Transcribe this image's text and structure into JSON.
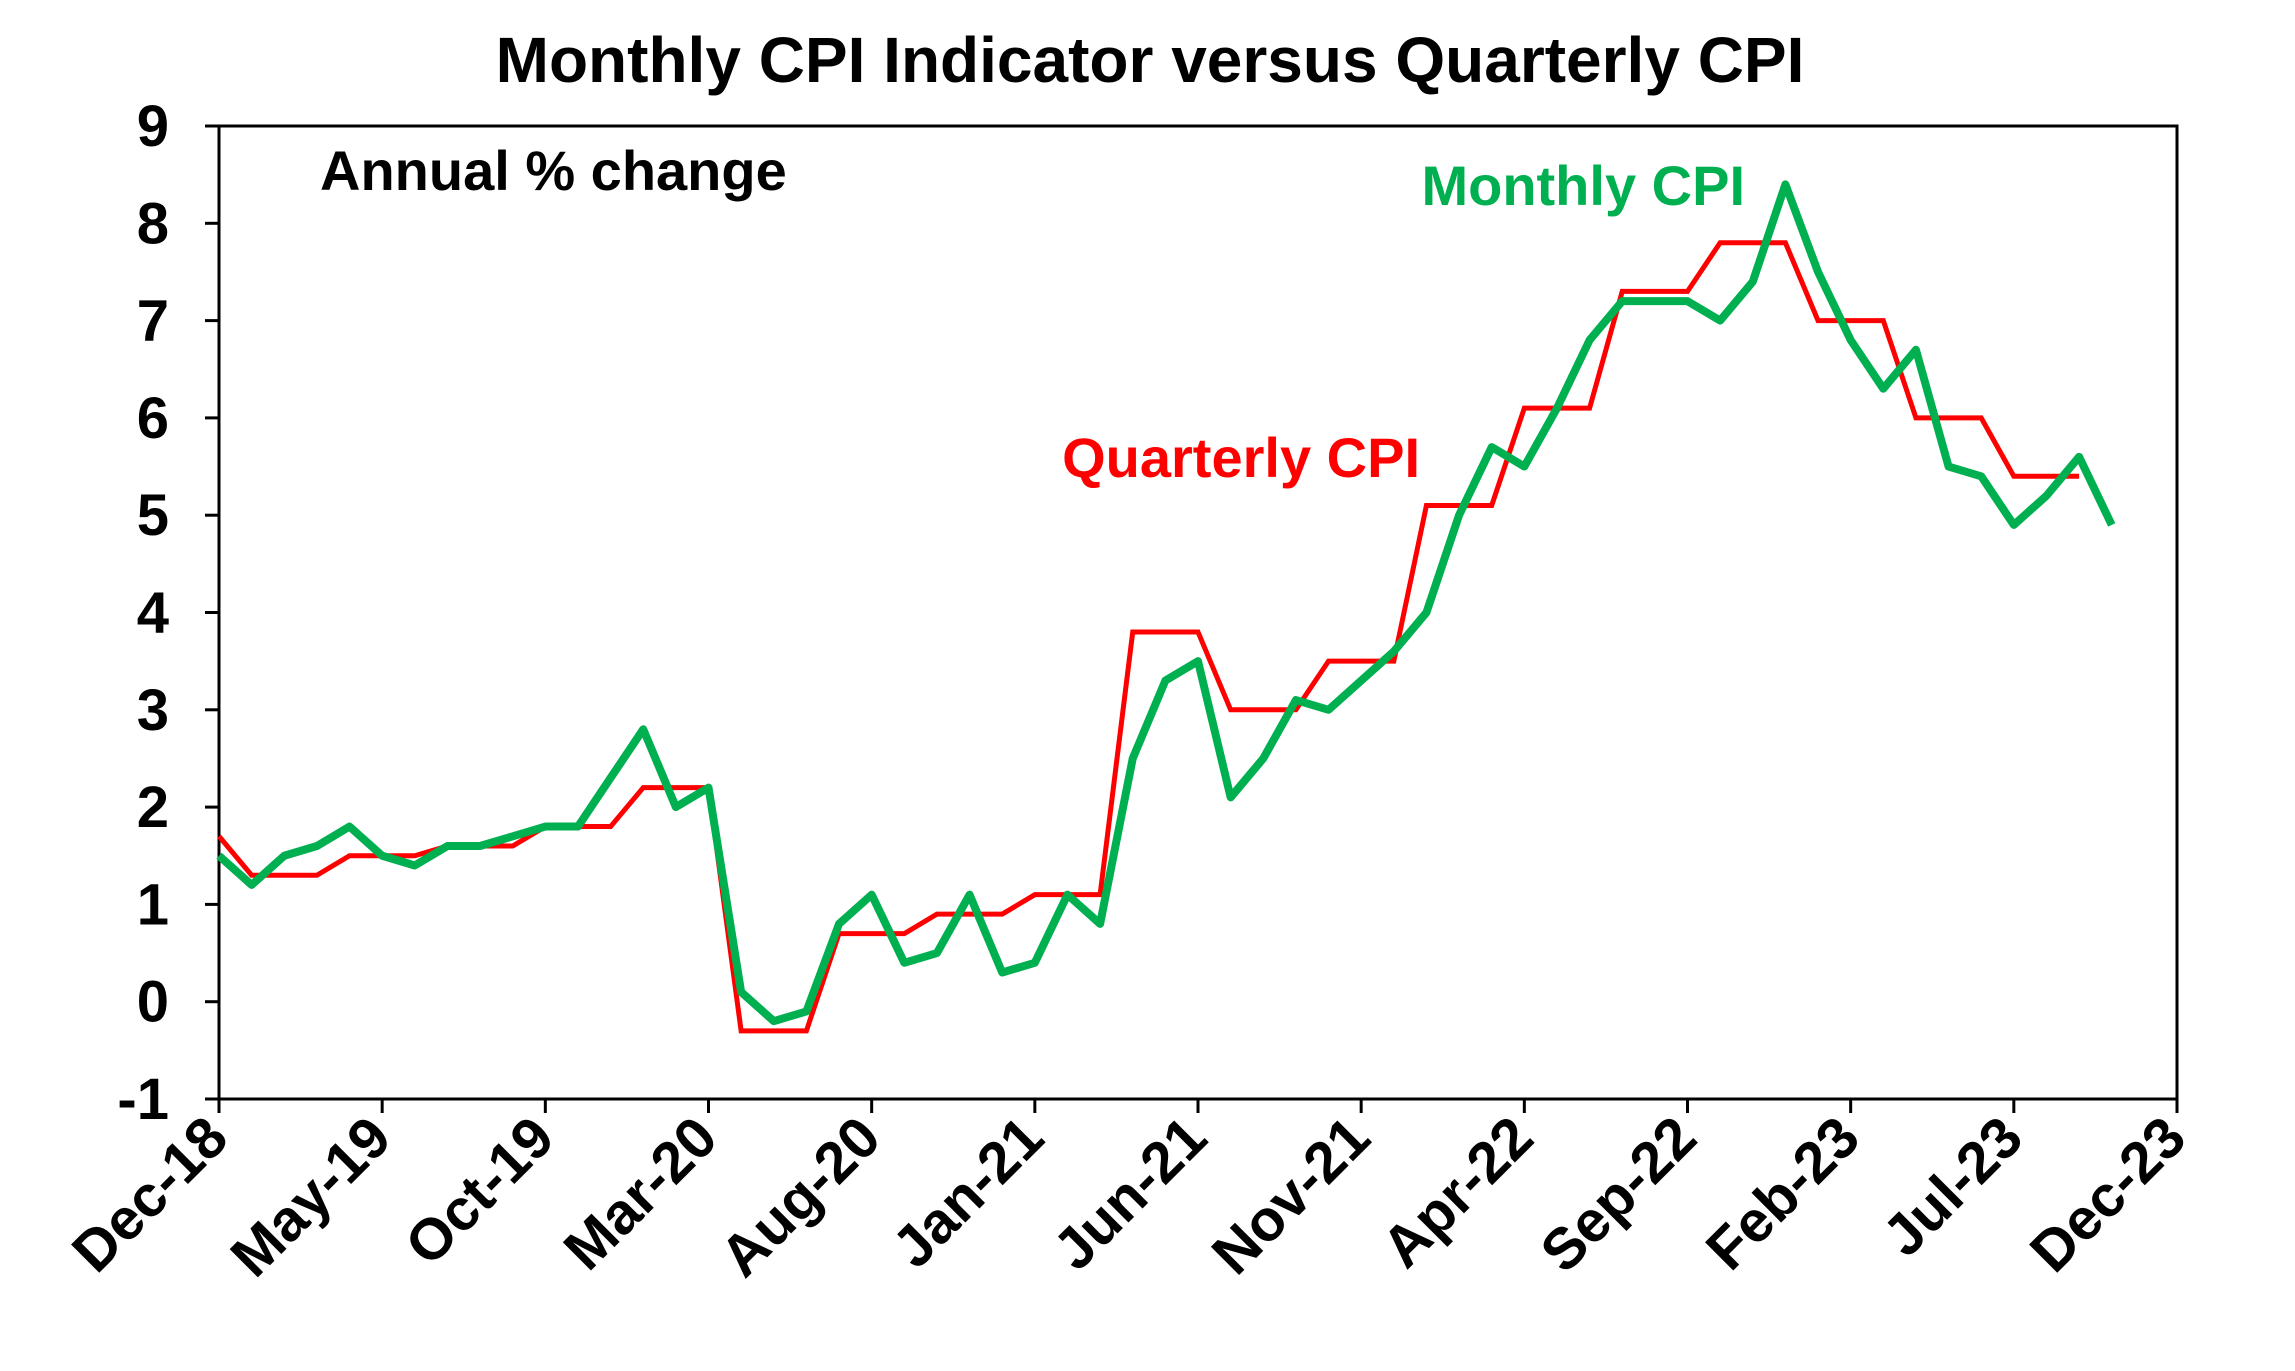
{
  "chart_data": {
    "type": "line",
    "title": "Monthly CPI Indicator versus Quarterly CPI",
    "subtitle": "Annual % change",
    "xlabel": "",
    "ylabel": "",
    "ylim": [
      -1,
      9
    ],
    "yticks": [
      "-1",
      "0",
      "1",
      "2",
      "3",
      "4",
      "5",
      "6",
      "7",
      "8",
      "9"
    ],
    "xticks": [
      "Dec-18",
      "May-19",
      "Oct-19",
      "Mar-20",
      "Aug-20",
      "Jan-21",
      "Jun-21",
      "Nov-21",
      "Apr-22",
      "Sep-22",
      "Feb-23",
      "Jul-23",
      "Dec-23"
    ],
    "grid": false,
    "legend": "inline labels",
    "series": [
      {
        "name": "Monthly CPI",
        "color": "#00B050",
        "values": [
          1.5,
          1.2,
          1.5,
          1.6,
          1.8,
          1.5,
          1.4,
          1.6,
          1.6,
          1.7,
          1.8,
          1.8,
          2.3,
          2.8,
          2.0,
          2.2,
          0.1,
          -0.2,
          -0.1,
          0.8,
          1.1,
          0.4,
          0.5,
          1.1,
          0.3,
          0.4,
          1.1,
          0.8,
          2.5,
          3.3,
          3.5,
          2.1,
          2.5,
          3.1,
          3.0,
          3.3,
          3.6,
          4.0,
          5.0,
          5.7,
          5.5,
          6.1,
          6.8,
          7.2,
          7.2,
          7.2,
          7.0,
          7.4,
          8.4,
          7.5,
          6.8,
          6.3,
          6.7,
          5.5,
          5.4,
          4.9,
          5.2,
          5.6,
          4.9
        ]
      },
      {
        "name": "Quarterly CPI",
        "color": "#FF0000",
        "values": [
          1.7,
          1.3,
          1.3,
          1.3,
          1.5,
          1.5,
          1.5,
          1.6,
          1.6,
          1.6,
          1.8,
          1.8,
          1.8,
          2.2,
          2.2,
          2.2,
          -0.3,
          -0.3,
          -0.3,
          0.7,
          0.7,
          0.7,
          0.9,
          0.9,
          0.9,
          1.1,
          1.1,
          1.1,
          3.8,
          3.8,
          3.8,
          3.0,
          3.0,
          3.0,
          3.5,
          3.5,
          3.5,
          5.1,
          5.1,
          5.1,
          6.1,
          6.1,
          6.1,
          7.3,
          7.3,
          7.3,
          7.8,
          7.8,
          7.8,
          7.0,
          7.0,
          7.0,
          6.0,
          6.0,
          6.0,
          5.4,
          5.4,
          5.4
        ]
      }
    ],
    "labels": {
      "monthly": "Monthly CPI",
      "quarterly": "Quarterly CPI"
    }
  }
}
